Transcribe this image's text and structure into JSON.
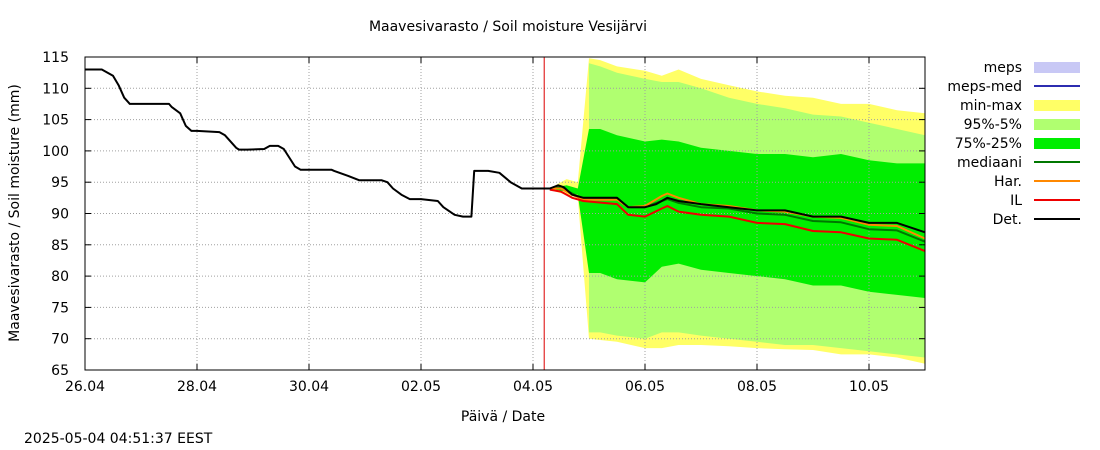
{
  "chart_data": {
    "type": "area",
    "title": "Maavesivarasto / Soil moisture   Vesijärvi",
    "xlabel": "Päivä / Date",
    "ylabel": "Maavesivarasto / Soil moisture (mm)",
    "timestamp": "2025-05-04 04:51:37 EEST",
    "x_range_days": [
      0,
      15
    ],
    "ylim": [
      65,
      115
    ],
    "grid": true,
    "legend_position": "right",
    "x_ticks": [
      {
        "day": 0,
        "label": "26.04"
      },
      {
        "day": 2,
        "label": "28.04"
      },
      {
        "day": 4,
        "label": "30.04"
      },
      {
        "day": 6,
        "label": "02.05"
      },
      {
        "day": 8,
        "label": "04.05"
      },
      {
        "day": 10,
        "label": "06.05"
      },
      {
        "day": 12,
        "label": "08.05"
      },
      {
        "day": 14,
        "label": "10.05"
      }
    ],
    "y_ticks": [
      65,
      70,
      75,
      80,
      85,
      90,
      95,
      100,
      105,
      110,
      115
    ],
    "forecast_marker_day": 8.2,
    "legend": [
      {
        "label": "meps",
        "kind": "box",
        "color": "#c8c8f5"
      },
      {
        "label": "meps-med",
        "kind": "line",
        "color": "#2c2cb0"
      },
      {
        "label": "min-max",
        "kind": "box",
        "color": "#ffff66"
      },
      {
        "label": "95%-5%",
        "kind": "box",
        "color": "#b0ff70"
      },
      {
        "label": "75%-25%",
        "kind": "box",
        "color": "#00ee00"
      },
      {
        "label": "mediaani",
        "kind": "line",
        "color": "#007700"
      },
      {
        "label": "Har.",
        "kind": "line",
        "color": "#ff8800"
      },
      {
        "label": "IL",
        "kind": "line",
        "color": "#ee0000"
      },
      {
        "label": "Det.",
        "kind": "line",
        "color": "#000000"
      }
    ],
    "bands_x": [
      8.4,
      8.6,
      8.8,
      9.0,
      9.2,
      9.5,
      10.0,
      10.3,
      10.6,
      11.0,
      11.5,
      12.0,
      12.5,
      13.0,
      13.5,
      14.0,
      14.5,
      15.0
    ],
    "series": [
      {
        "name": "min-max",
        "color": "#ffff66",
        "upper": [
          94.5,
          95.5,
          95.0,
          114.8,
          114.5,
          113.5,
          112.8,
          112.0,
          113.0,
          111.5,
          110.5,
          109.5,
          108.8,
          108.5,
          107.5,
          107.5,
          106.5,
          106.0
        ],
        "lower": [
          93.5,
          93.0,
          92.5,
          70.0,
          69.8,
          69.5,
          68.5,
          68.5,
          69.0,
          69.0,
          68.8,
          68.5,
          68.3,
          68.2,
          67.5,
          67.5,
          67.0,
          66.0
        ]
      },
      {
        "name": "95%-5%",
        "color": "#b0ff70",
        "upper": [
          94.3,
          95.0,
          94.5,
          114.0,
          113.5,
          112.5,
          111.5,
          111.0,
          111.0,
          110.0,
          108.5,
          107.5,
          106.8,
          105.8,
          105.5,
          104.5,
          103.5,
          102.5
        ],
        "lower": [
          93.7,
          93.2,
          92.7,
          71.0,
          71.0,
          70.5,
          70.0,
          71.0,
          71.0,
          70.5,
          70.0,
          69.5,
          69.0,
          69.0,
          68.5,
          68.0,
          67.5,
          67.0
        ],
        "skip_first": 3
      },
      {
        "name": "75%-25%",
        "color": "#00ee00",
        "upper": [
          94.2,
          94.5,
          94.0,
          103.5,
          103.5,
          102.5,
          101.5,
          101.8,
          101.5,
          100.5,
          100.0,
          99.5,
          99.5,
          99.0,
          99.5,
          98.5,
          98.0,
          98.0
        ],
        "lower": [
          93.8,
          93.5,
          93.0,
          80.5,
          80.5,
          79.5,
          79.0,
          81.5,
          82.0,
          81.0,
          80.5,
          80.0,
          79.5,
          78.5,
          78.5,
          77.5,
          77.0,
          76.5
        ]
      }
    ],
    "lines": [
      {
        "name": "Det.",
        "color": "#000000",
        "x": [
          0,
          0.3,
          0.5,
          0.6,
          0.7,
          0.8,
          1.0,
          1.5,
          1.55,
          1.7,
          1.8,
          1.9,
          2.0,
          2.4,
          2.5,
          2.7,
          2.75,
          2.9,
          3.2,
          3.3,
          3.45,
          3.55,
          3.75,
          3.85,
          4.0,
          4.4,
          4.45,
          4.7,
          4.9,
          5.3,
          5.4,
          5.5,
          5.65,
          5.8,
          6.0,
          6.3,
          6.4,
          6.6,
          6.75,
          6.9,
          6.95,
          7.2,
          7.4,
          7.6,
          7.8,
          8.0,
          8.3,
          8.45,
          8.55,
          8.7,
          8.9,
          9.5,
          9.7,
          10.0,
          10.2,
          10.4,
          10.6,
          11.0,
          11.5,
          12.0,
          12.5,
          13.0,
          13.5,
          14.0,
          14.5,
          15.0
        ],
        "y": [
          113.0,
          113.0,
          112.0,
          110.5,
          108.5,
          107.5,
          107.5,
          107.5,
          107.0,
          106.0,
          104.0,
          103.2,
          103.2,
          103.0,
          102.5,
          100.5,
          100.2,
          100.2,
          100.3,
          100.8,
          100.8,
          100.3,
          97.5,
          97.0,
          97.0,
          97.0,
          96.8,
          96.0,
          95.3,
          95.3,
          95.0,
          94.0,
          93.0,
          92.3,
          92.3,
          92.0,
          91.0,
          89.8,
          89.5,
          89.5,
          96.8,
          96.8,
          96.5,
          95.0,
          94.0,
          94.0,
          94.0,
          94.5,
          94.2,
          93.0,
          92.5,
          92.5,
          91.0,
          91.0,
          91.5,
          92.5,
          92.0,
          91.5,
          91.0,
          90.5,
          90.5,
          89.5,
          89.5,
          88.5,
          88.5,
          87.0
        ]
      },
      {
        "name": "mediaani",
        "color": "#007700",
        "x": [
          8.3,
          8.5,
          8.7,
          8.9,
          9.5,
          9.7,
          10.0,
          10.3,
          10.4,
          10.6,
          11.0,
          11.5,
          12.0,
          12.5,
          13.0,
          13.5,
          14.0,
          14.5,
          15.0
        ],
        "y": [
          94.0,
          94.2,
          93.2,
          92.3,
          92.3,
          91.0,
          91.0,
          92.0,
          92.3,
          91.7,
          91.0,
          90.8,
          90.0,
          89.8,
          88.8,
          88.6,
          87.5,
          87.3,
          85.5
        ]
      },
      {
        "name": "Har.",
        "color": "#ff8800",
        "x": [
          8.3,
          8.5,
          8.7,
          8.9,
          9.5,
          9.7,
          10.0,
          10.3,
          10.4,
          10.6,
          11.0,
          11.5,
          12.0,
          12.5,
          13.0,
          13.5,
          14.0,
          14.5,
          15.0
        ],
        "y": [
          94.0,
          94.0,
          93.0,
          92.2,
          92.2,
          91.0,
          91.2,
          92.8,
          93.2,
          92.5,
          91.5,
          91.2,
          90.5,
          90.3,
          89.5,
          89.3,
          88.2,
          88.0,
          86.0
        ]
      },
      {
        "name": "IL",
        "color": "#ee0000",
        "x": [
          8.3,
          8.5,
          8.7,
          8.9,
          9.5,
          9.7,
          10.0,
          10.3,
          10.4,
          10.6,
          11.0,
          11.5,
          12.0,
          12.5,
          13.0,
          13.5,
          14.0,
          14.5,
          15.0
        ],
        "y": [
          93.8,
          93.5,
          92.5,
          92.0,
          91.5,
          89.8,
          89.5,
          90.8,
          91.2,
          90.3,
          89.8,
          89.5,
          88.5,
          88.3,
          87.2,
          87.0,
          86.0,
          85.8,
          84.0
        ]
      }
    ]
  }
}
